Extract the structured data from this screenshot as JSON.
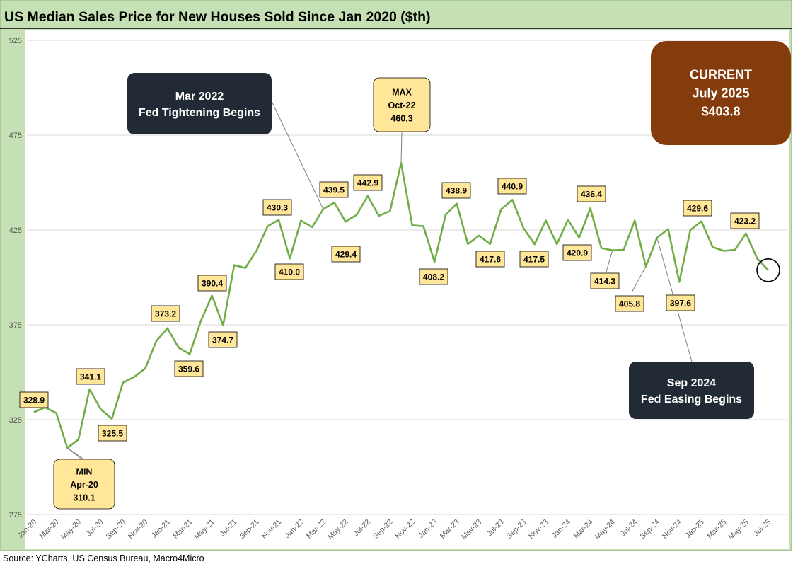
{
  "title": "US Median Sales Price for New Houses Sold Since Jan 2020 ($th)",
  "source": "Source: YCharts, US Census Bureau, Macro4Micro",
  "colors": {
    "line": "#70ad47",
    "frame": "#c5e0b4",
    "label_fill": "#ffe699",
    "dark_callout": "#222a35",
    "current_box": "#843c0c"
  },
  "chart_data": {
    "type": "line",
    "ylim": [
      275,
      525
    ],
    "yticks": [
      275,
      325,
      375,
      425,
      475,
      525
    ],
    "x_tick_labels": [
      "Jan-20",
      "Mar-20",
      "May-20",
      "Jul-20",
      "Sep-20",
      "Nov-20",
      "Jan-21",
      "Mar-21",
      "May-21",
      "Jul-21",
      "Sep-21",
      "Nov-21",
      "Jan-22",
      "Mar-22",
      "May-22",
      "Jul-22",
      "Sep-22",
      "Nov-22",
      "Jan-23",
      "Mar-23",
      "May-23",
      "Jul-23",
      "Sep-23",
      "Nov-23",
      "Jan-24",
      "Mar-24",
      "May-24",
      "Jul-24",
      "Sep-24",
      "Nov-24",
      "Jan-25",
      "Mar-25",
      "May-25",
      "Jul-25"
    ],
    "x": [
      "Jan-20",
      "Feb-20",
      "Mar-20",
      "Apr-20",
      "May-20",
      "Jun-20",
      "Jul-20",
      "Aug-20",
      "Sep-20",
      "Oct-20",
      "Nov-20",
      "Dec-20",
      "Jan-21",
      "Feb-21",
      "Mar-21",
      "Apr-21",
      "May-21",
      "Jun-21",
      "Jul-21",
      "Aug-21",
      "Sep-21",
      "Oct-21",
      "Nov-21",
      "Dec-21",
      "Jan-22",
      "Feb-22",
      "Mar-22",
      "Apr-22",
      "May-22",
      "Jun-22",
      "Jul-22",
      "Aug-22",
      "Sep-22",
      "Oct-22",
      "Nov-22",
      "Dec-22",
      "Jan-23",
      "Feb-23",
      "Mar-23",
      "Apr-23",
      "May-23",
      "Jun-23",
      "Jul-23",
      "Aug-23",
      "Sep-23",
      "Oct-23",
      "Nov-23",
      "Dec-23",
      "Jan-24",
      "Feb-24",
      "Mar-24",
      "Apr-24",
      "May-24",
      "Jun-24",
      "Jul-24",
      "Aug-24",
      "Sep-24",
      "Oct-24",
      "Nov-24",
      "Dec-24",
      "Jan-25",
      "Feb-25",
      "Mar-25",
      "Apr-25",
      "May-25",
      "Jun-25",
      "Jul-25"
    ],
    "values": [
      328.9,
      331.5,
      328.5,
      310.1,
      314.5,
      341.1,
      330.5,
      325.5,
      344.5,
      347.5,
      352.0,
      366.5,
      373.2,
      363.0,
      359.6,
      377.0,
      390.4,
      374.7,
      406.5,
      405.0,
      414.0,
      427.0,
      430.3,
      410.0,
      430.0,
      426.5,
      436.0,
      439.5,
      429.4,
      433.0,
      442.9,
      432.5,
      435.0,
      460.3,
      427.5,
      427.0,
      408.2,
      433.0,
      438.9,
      417.6,
      422.0,
      417.6,
      436.0,
      440.9,
      426.0,
      417.5,
      430.0,
      417.5,
      430.5,
      420.9,
      436.4,
      415.5,
      414.3,
      414.5,
      430.0,
      405.8,
      420.9,
      425.5,
      397.6,
      425.0,
      429.6,
      416.0,
      414.0,
      414.5,
      423.2,
      410.0,
      403.8
    ],
    "data_labels": [
      {
        "index": 0,
        "text": "328.9"
      },
      {
        "index": 5,
        "text": "341.1"
      },
      {
        "index": 7,
        "text": "325.5"
      },
      {
        "index": 12,
        "text": "373.2"
      },
      {
        "index": 14,
        "text": "359.6"
      },
      {
        "index": 16,
        "text": "390.4"
      },
      {
        "index": 17,
        "text": "374.7"
      },
      {
        "index": 22,
        "text": "430.3"
      },
      {
        "index": 23,
        "text": "410.0"
      },
      {
        "index": 27,
        "text": "439.5"
      },
      {
        "index": 28,
        "text": "429.4"
      },
      {
        "index": 30,
        "text": "442.9"
      },
      {
        "index": 36,
        "text": "408.2"
      },
      {
        "index": 38,
        "text": "438.9"
      },
      {
        "index": 41,
        "text": "417.6"
      },
      {
        "index": 43,
        "text": "440.9"
      },
      {
        "index": 45,
        "text": "417.5"
      },
      {
        "index": 49,
        "text": "420.9"
      },
      {
        "index": 50,
        "text": "436.4"
      },
      {
        "index": 52,
        "text": "414.3"
      },
      {
        "index": 55,
        "text": "405.8"
      },
      {
        "index": 58,
        "text": "397.6"
      },
      {
        "index": 60,
        "text": "429.6"
      },
      {
        "index": 64,
        "text": "423.2"
      }
    ],
    "annotations": {
      "min": {
        "index": 3,
        "lines": [
          "MIN",
          "Apr-20",
          "310.1"
        ]
      },
      "max": {
        "index": 33,
        "lines": [
          "MAX",
          "Oct-22",
          "460.3"
        ]
      },
      "tightening": {
        "index": 26,
        "lines": [
          "Mar 2022",
          "Fed Tightening Begins"
        ]
      },
      "easing": {
        "index": 56,
        "lines": [
          "Sep 2024",
          "Fed Easing Begins"
        ]
      },
      "current": {
        "index": 66,
        "lines": [
          "CURRENT",
          "July 2025",
          "$403.8"
        ]
      }
    }
  }
}
